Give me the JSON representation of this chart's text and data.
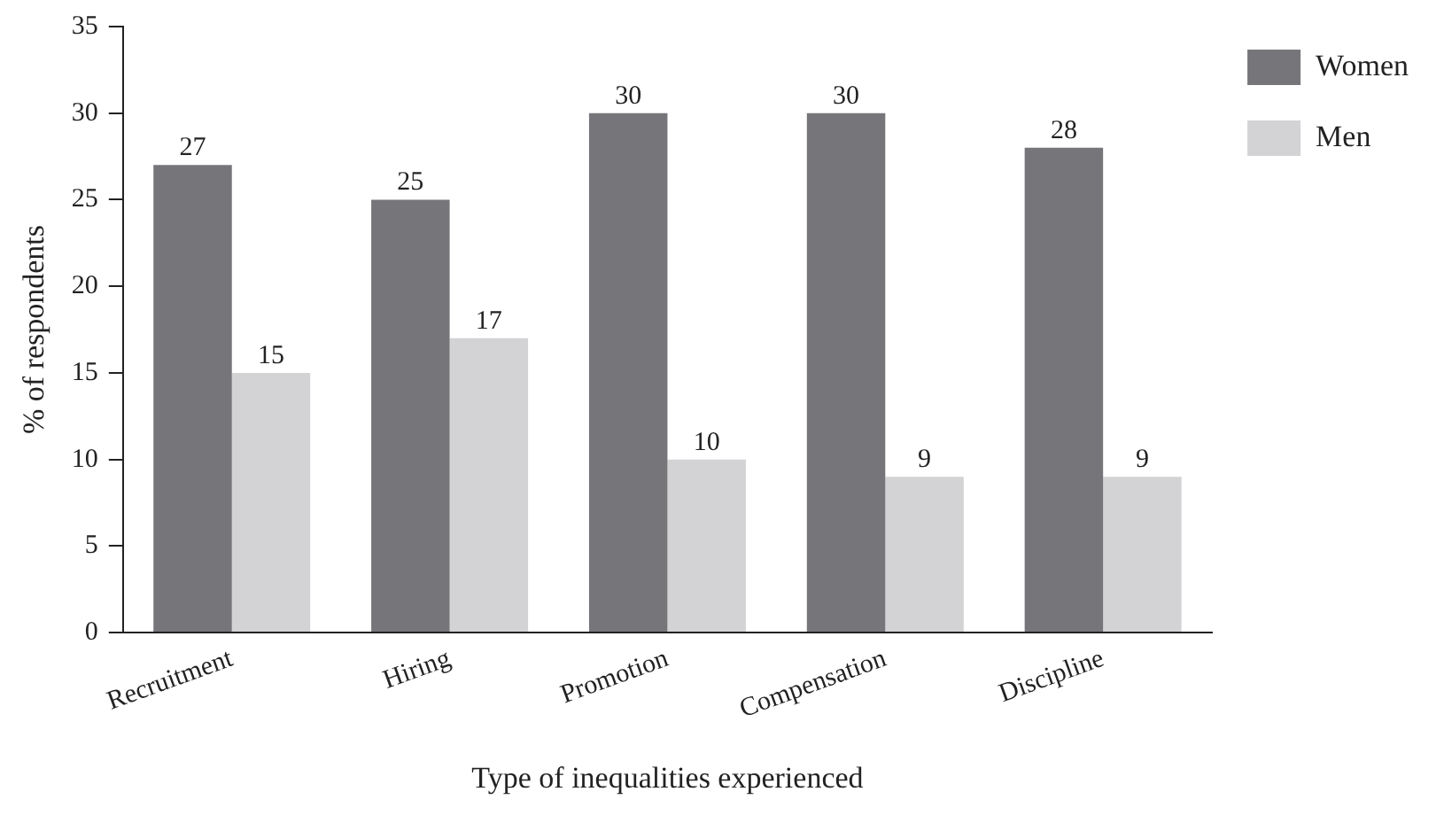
{
  "chart_data": {
    "type": "bar",
    "xlabel": "Type of inequalities experienced",
    "ylabel": "% of respondents",
    "categories": [
      "Recruitment",
      "Hiring",
      "Promotion",
      "Compensation",
      "Discipline"
    ],
    "series": [
      {
        "name": "Women",
        "color": "#76767a",
        "values": [
          27,
          25,
          30,
          30,
          28
        ]
      },
      {
        "name": "Men",
        "color": "#d3d3d5",
        "values": [
          15,
          17,
          10,
          9,
          9
        ]
      }
    ],
    "ylim": [
      0,
      35
    ],
    "yticks": [
      0,
      5,
      10,
      15,
      20,
      25,
      30,
      35
    ],
    "grid": false,
    "legend": "top right",
    "data_labels": true
  }
}
